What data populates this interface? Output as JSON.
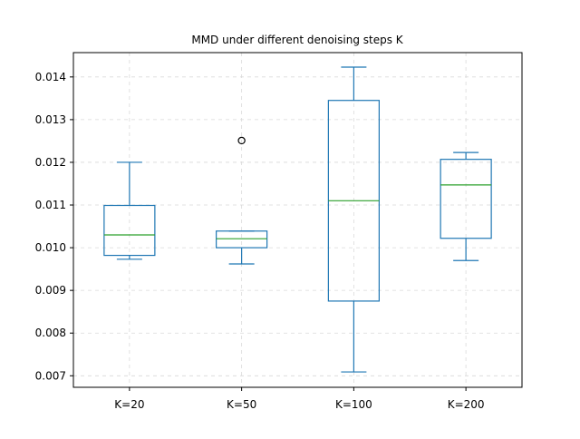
{
  "chart_data": {
    "type": "boxplot",
    "title": "MMD under different denoising steps K",
    "xlabel": "",
    "ylabel": "",
    "ylim": [
      0.00673,
      0.01457
    ],
    "grid": true,
    "categories": [
      "K=20",
      "K=50",
      "K=100",
      "K=200"
    ],
    "boxes": [
      {
        "label": "K=20",
        "whisker_low": 0.00973,
        "q1": 0.00982,
        "median": 0.0103,
        "q3": 0.01099,
        "whisker_high": 0.012,
        "outliers": []
      },
      {
        "label": "K=50",
        "whisker_low": 0.00962,
        "q1": 0.01,
        "median": 0.01021,
        "q3": 0.01039,
        "whisker_high": 0.01039,
        "outliers": [
          0.01251
        ]
      },
      {
        "label": "K=100",
        "whisker_low": 0.00709,
        "q1": 0.00875,
        "median": 0.0111,
        "q3": 0.01345,
        "whisker_high": 0.01423,
        "outliers": []
      },
      {
        "label": "K=200",
        "whisker_low": 0.0097,
        "q1": 0.01022,
        "median": 0.01147,
        "q3": 0.01207,
        "whisker_high": 0.01223,
        "outliers": []
      }
    ],
    "yticks": [
      "0.007",
      "0.008",
      "0.009",
      "0.010",
      "0.011",
      "0.012",
      "0.013",
      "0.014"
    ],
    "colors": {
      "box": "#1f77b4",
      "median": "#2ca02c",
      "grid": "#d9d9d9",
      "axis": "#000000",
      "outlier_edge": "#000000"
    }
  }
}
